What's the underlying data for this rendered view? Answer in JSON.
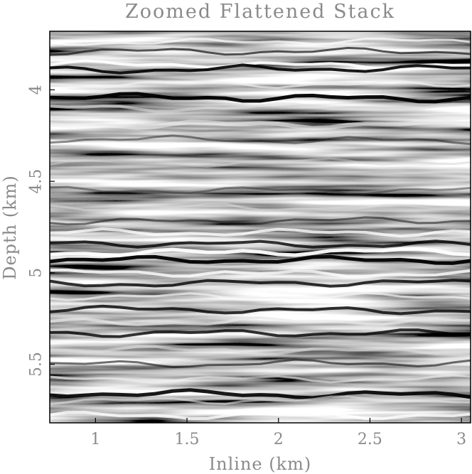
{
  "figure": {
    "title": "Zoomed Flattened Stack",
    "x_axis": {
      "label": "Inline (km)",
      "range": [
        0.75,
        3.05
      ],
      "ticks": [
        1,
        1.5,
        2,
        2.5,
        3
      ],
      "tick_labels": [
        "1",
        "1.5",
        "2",
        "2.5",
        "3"
      ]
    },
    "y_axis": {
      "label": "Depth (km)",
      "range": [
        3.68,
        5.82
      ],
      "ticks": [
        4,
        4.5,
        5,
        5.5
      ],
      "tick_labels": [
        "4",
        "4.5",
        "5",
        "5.5"
      ]
    },
    "image": {
      "type": "grayscale seismic section",
      "colors": {
        "dark": "#000000",
        "light": "#ffffff",
        "mid": "#808080"
      }
    }
  }
}
